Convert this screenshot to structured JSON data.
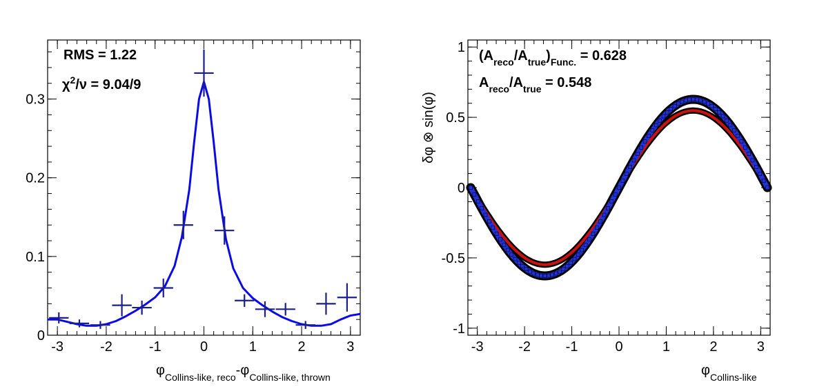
{
  "chart_data": [
    {
      "type": "scatter",
      "panel": "left",
      "xlim": [
        -3.2,
        3.2
      ],
      "ylim": [
        0,
        0.375
      ],
      "x_ticks": [
        -3,
        -2,
        -1,
        0,
        1,
        2,
        3
      ],
      "x_tick_labels": [
        "-3",
        "-2",
        "-1",
        "0",
        "1",
        "2",
        "3"
      ],
      "y_ticks": [
        0,
        0.1,
        0.2,
        0.3
      ],
      "y_tick_labels": [
        "0",
        "0.1",
        "0.2",
        "0.3"
      ],
      "xlabel": {
        "phi_symbol": "φ",
        "sub1": "Collins-like, reco",
        "minus": "-φ",
        "sub2": "Collins-like, thrown"
      },
      "stats": {
        "rms_text": "RMS = 1.22",
        "chi_symbol": "χ",
        "chi_sup": "2",
        "chi_rest": "/ν = 9.04/9"
      },
      "points": [
        {
          "x": -2.97,
          "y": 0.022,
          "xerr": 0.2,
          "yerr": 0.007
        },
        {
          "x": -2.55,
          "y": 0.015,
          "xerr": 0.2,
          "yerr": 0.005
        },
        {
          "x": -2.12,
          "y": 0.013,
          "xerr": 0.2,
          "yerr": 0.005
        },
        {
          "x": -1.68,
          "y": 0.038,
          "xerr": 0.2,
          "yerr": 0.014
        },
        {
          "x": -1.27,
          "y": 0.035,
          "xerr": 0.2,
          "yerr": 0.009
        },
        {
          "x": -0.83,
          "y": 0.06,
          "xerr": 0.2,
          "yerr": 0.012
        },
        {
          "x": -0.42,
          "y": 0.14,
          "xerr": 0.2,
          "yerr": 0.018
        },
        {
          "x": 0.0,
          "y": 0.333,
          "xerr": 0.2,
          "yerr": 0.03
        },
        {
          "x": 0.42,
          "y": 0.133,
          "xerr": 0.2,
          "yerr": 0.018
        },
        {
          "x": 0.83,
          "y": 0.044,
          "xerr": 0.2,
          "yerr": 0.008
        },
        {
          "x": 1.25,
          "y": 0.033,
          "xerr": 0.2,
          "yerr": 0.01
        },
        {
          "x": 1.67,
          "y": 0.033,
          "xerr": 0.2,
          "yerr": 0.008
        },
        {
          "x": 2.08,
          "y": 0.013,
          "xerr": 0.2,
          "yerr": 0.005
        },
        {
          "x": 2.5,
          "y": 0.04,
          "xerr": 0.2,
          "yerr": 0.014
        },
        {
          "x": 2.93,
          "y": 0.048,
          "xerr": 0.2,
          "yerr": 0.018
        }
      ],
      "fit_curve": [
        [
          -3.2,
          0.02
        ],
        [
          -3.0,
          0.02
        ],
        [
          -2.8,
          0.017
        ],
        [
          -2.6,
          0.014
        ],
        [
          -2.4,
          0.012
        ],
        [
          -2.2,
          0.012
        ],
        [
          -2.0,
          0.014
        ],
        [
          -1.8,
          0.018
        ],
        [
          -1.6,
          0.024
        ],
        [
          -1.4,
          0.031
        ],
        [
          -1.2,
          0.039
        ],
        [
          -1.0,
          0.048
        ],
        [
          -0.8,
          0.062
        ],
        [
          -0.6,
          0.088
        ],
        [
          -0.45,
          0.125
        ],
        [
          -0.3,
          0.185
        ],
        [
          -0.2,
          0.245
        ],
        [
          -0.1,
          0.3
        ],
        [
          0.0,
          0.322
        ],
        [
          0.1,
          0.3
        ],
        [
          0.2,
          0.245
        ],
        [
          0.3,
          0.185
        ],
        [
          0.45,
          0.122
        ],
        [
          0.6,
          0.085
        ],
        [
          0.8,
          0.06
        ],
        [
          1.0,
          0.047
        ],
        [
          1.2,
          0.038
        ],
        [
          1.4,
          0.03
        ],
        [
          1.6,
          0.023
        ],
        [
          1.8,
          0.018
        ],
        [
          2.0,
          0.014
        ],
        [
          2.2,
          0.012
        ],
        [
          2.4,
          0.012
        ],
        [
          2.6,
          0.014
        ],
        [
          2.8,
          0.02
        ],
        [
          3.0,
          0.025
        ],
        [
          3.2,
          0.027
        ]
      ],
      "colors": {
        "fit": "#0a0ae6",
        "points": "#1b1e8c",
        "frame": "#000000"
      }
    },
    {
      "type": "line",
      "panel": "right",
      "xlim": [
        -3.2,
        3.2
      ],
      "ylim": [
        -1.05,
        1.05
      ],
      "x_ticks": [
        -3,
        -2,
        -1,
        0,
        1,
        2,
        3
      ],
      "x_tick_labels": [
        "-3",
        "-2",
        "-1",
        "0",
        "1",
        "2",
        "3"
      ],
      "y_ticks": [
        -1,
        -0.5,
        0,
        0.5,
        1
      ],
      "y_tick_labels": [
        "-1",
        "-0.5",
        "0",
        "0.5",
        "1"
      ],
      "ylabel": "δφ ⊗ sin(φ)",
      "xlabel": {
        "phi_symbol": "φ",
        "sub": "Collins-like"
      },
      "stats": {
        "line1_open": "(A",
        "line1_sub_reco": "reco",
        "line1_mid": "/A",
        "line1_sub_true": "true",
        "line1_close": ")",
        "line1_sub_func": "Func.",
        "line1_value": " = 0.628",
        "line2_a": "A",
        "line2_sub_reco": "reco",
        "line2_mid": "/A",
        "line2_sub_true": "true",
        "line2_value": " = 0.548"
      },
      "series": [
        {
          "amplitude": 0.628,
          "color": "#2233dd",
          "style": "markers"
        },
        {
          "amplitude": 0.548,
          "color": "#cc1111",
          "style": "line"
        }
      ],
      "domain": [
        -3.14159,
        3.14159
      ],
      "colors": {
        "marker_edge": "#000000",
        "frame": "#000000"
      }
    }
  ]
}
